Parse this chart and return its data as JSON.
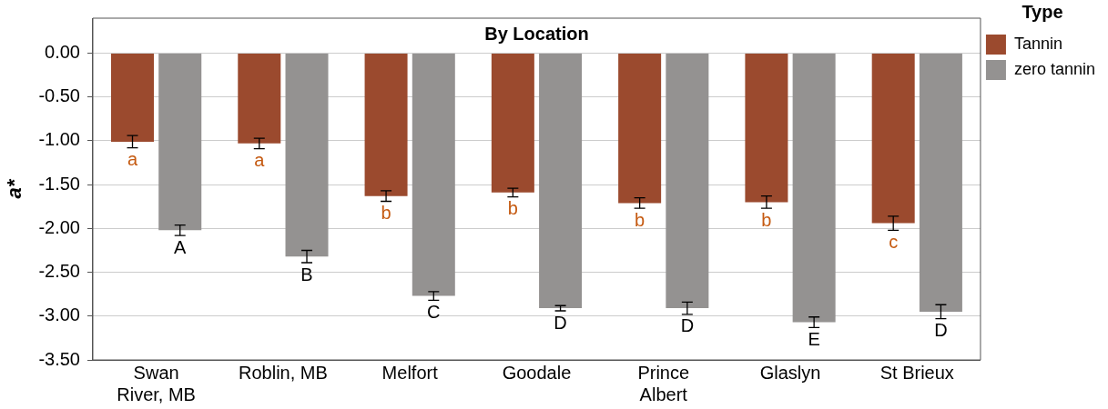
{
  "chart_data": {
    "type": "bar",
    "title": "By Location",
    "ylabel": "a*",
    "legend_title": "Type",
    "categories": [
      "Swan River, MB",
      "Roblin, MB",
      "Melfort",
      "Goodale",
      "Prince Albert",
      "Glaslyn",
      "St Brieux"
    ],
    "series": [
      {
        "name": "Tannin",
        "color": "#9b4a2e",
        "values": [
          -1.01,
          -1.03,
          -1.63,
          -1.59,
          -1.71,
          -1.7,
          -1.94
        ],
        "errors": [
          0.07,
          0.06,
          0.06,
          0.05,
          0.06,
          0.07,
          0.08
        ]
      },
      {
        "name": "zero tannin",
        "color": "#949291",
        "values": [
          -2.02,
          -2.32,
          -2.77,
          -2.91,
          -2.91,
          -3.07,
          -2.95
        ],
        "errors": [
          0.06,
          0.07,
          0.05,
          0.03,
          0.07,
          0.06,
          0.08
        ]
      }
    ],
    "ylim": [
      -3.5,
      0.4
    ],
    "yticks": [
      {
        "value": -3.5,
        "label": "-3.50"
      },
      {
        "value": -3,
        "label": "-3.00"
      },
      {
        "value": -2.5,
        "label": "-2.50"
      },
      {
        "value": -2,
        "label": "-2.00"
      },
      {
        "value": -1.5,
        "label": "-1.50"
      },
      {
        "value": -1,
        "label": "-1.00"
      },
      {
        "value": -0.5,
        "label": "-0.50"
      },
      {
        "value": 0,
        "label": "0.00"
      }
    ],
    "grid": "y",
    "legend": "top right",
    "annotations": [
      {
        "text": "a",
        "x": "Swan River, MB",
        "y": -1.01
      },
      {
        "text": "A",
        "x": "Swan River, MB",
        "y": -2.02
      },
      {
        "text": "a",
        "x": "Roblin, MB",
        "y": -1.03
      },
      {
        "text": "B",
        "x": "Roblin, MB",
        "y": -2.32
      },
      {
        "text": "b",
        "x": "Melfort",
        "y": -1.63
      },
      {
        "text": "C",
        "x": "Melfort",
        "y": -2.77
      },
      {
        "text": "b",
        "x": "Goodale",
        "y": -1.59
      },
      {
        "text": "D",
        "x": "Goodale",
        "y": -2.91
      },
      {
        "text": "b",
        "x": "Prince Albert",
        "y": -1.71
      },
      {
        "text": "D",
        "x": "Prince Albert",
        "y": -2.91
      },
      {
        "text": "b",
        "x": "Glaslyn",
        "y": -1.7
      },
      {
        "text": "E",
        "x": "Glaslyn",
        "y": -3.07
      },
      {
        "text": "c",
        "x": "St Brieux",
        "y": -1.94
      },
      {
        "text": "D",
        "x": "St Brieux",
        "y": -2.95
      }
    ]
  }
}
